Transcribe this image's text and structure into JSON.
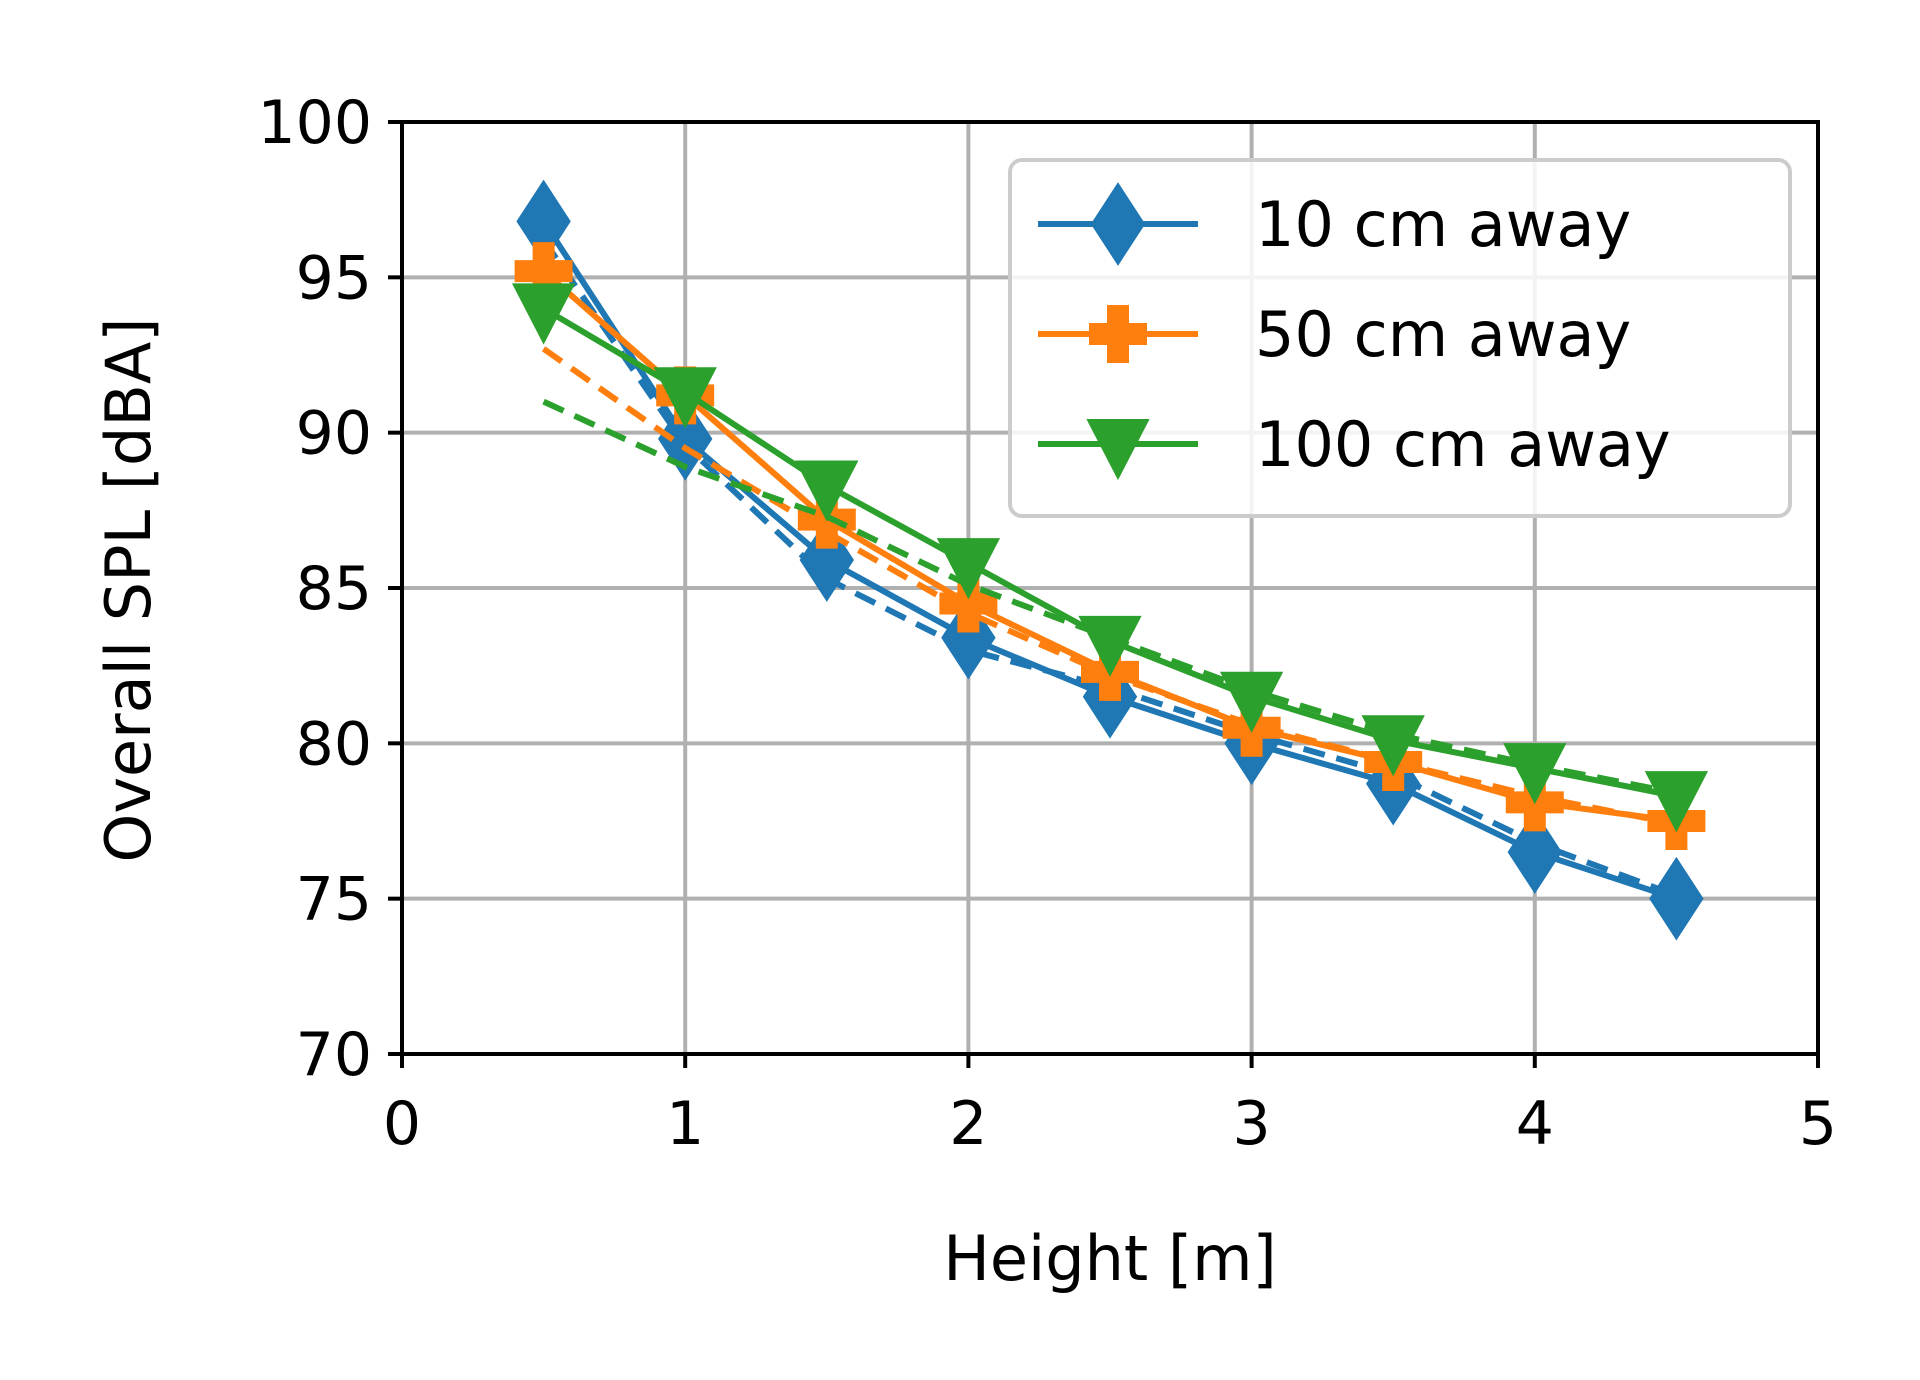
{
  "chart_data": {
    "type": "line",
    "xlabel": "Height [m]",
    "ylabel": "Overall SPL [dBA]",
    "xlim": [
      0,
      5
    ],
    "ylim": [
      70,
      100
    ],
    "xticks": [
      0,
      1,
      2,
      3,
      4,
      5
    ],
    "yticks": [
      70,
      75,
      80,
      85,
      90,
      95,
      100
    ],
    "xtick_labels": [
      "0",
      "1",
      "2",
      "3",
      "4",
      "5"
    ],
    "ytick_labels": [
      "70",
      "75",
      "80",
      "85",
      "90",
      "95",
      "100"
    ],
    "grid": true,
    "legend_position": "top-right",
    "x": [
      0.5,
      1.0,
      1.5,
      2.0,
      2.5,
      3.0,
      3.5,
      4.0,
      4.5
    ],
    "series": [
      {
        "name": "10 cm away",
        "color": "#1f77b4",
        "marker": "thin-diamond",
        "values": [
          96.8,
          89.8,
          85.9,
          83.4,
          81.5,
          80.0,
          78.7,
          76.5,
          75.0
        ],
        "fit": [
          96.2,
          89.6,
          85.3,
          83.0,
          81.8,
          80.3,
          79.0,
          76.8,
          75.1
        ]
      },
      {
        "name": "50 cm away",
        "color": "#ff7f0e",
        "marker": "plus-filled",
        "values": [
          95.2,
          91.2,
          87.2,
          84.5,
          82.3,
          80.5,
          79.4,
          78.1,
          77.5
        ],
        "fit": [
          92.7,
          89.5,
          86.8,
          84.2,
          82.2,
          80.6,
          79.4,
          78.3,
          77.4
        ]
      },
      {
        "name": "100 cm away",
        "color": "#2ca02c",
        "marker": "triangle-down",
        "values": [
          94.0,
          91.3,
          88.3,
          85.8,
          83.3,
          81.5,
          80.1,
          79.2,
          78.3
        ],
        "fit": [
          91.0,
          88.9,
          87.3,
          85.1,
          83.4,
          81.7,
          80.3,
          79.3,
          78.4
        ]
      }
    ]
  }
}
